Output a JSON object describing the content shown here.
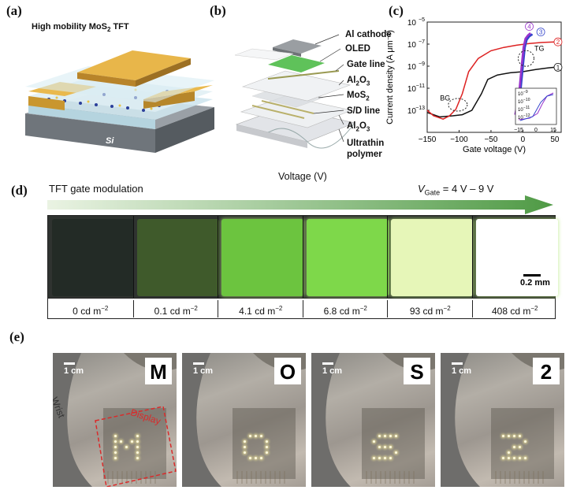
{
  "panels": {
    "a": "(a)",
    "b": "(b)",
    "c": "(c)",
    "d": "(d)",
    "e": "(e)"
  },
  "panel_a": {
    "title": "High mobility MoS",
    "title_sub": "2",
    "title_end": " TFT",
    "si": "Si"
  },
  "panel_b": {
    "layers": [
      {
        "text": "Al cathode"
      },
      {
        "text": "OLED"
      },
      {
        "text": "Gate line"
      },
      {
        "text": "Al",
        "sub": "2",
        "rest": "O",
        "sub2": "3"
      },
      {
        "text": "MoS",
        "sub": "2"
      },
      {
        "text": "S/D line"
      },
      {
        "text": "Al",
        "sub": "2",
        "rest": "O",
        "sub2": "3"
      },
      {
        "text": "Ultrathin"
      },
      {
        "text": "polymer"
      }
    ],
    "below": "Voltage (V)"
  },
  "chart_data": {
    "type": "line",
    "xlabel": "Gate voltage (V)",
    "ylabel": "Current density (A μm⁻²)",
    "xlim": [
      -150,
      60
    ],
    "ylim_log10": [
      -15,
      -5
    ],
    "x_ticks": [
      "−150",
      "−100",
      "−50",
      "0",
      "50"
    ],
    "y_ticks": [
      {
        "base": "10",
        "exp": "−5"
      },
      {
        "base": "10",
        "exp": "−7"
      },
      {
        "base": "10",
        "exp": "−9"
      },
      {
        "base": "10",
        "exp": "−11"
      },
      {
        "base": "10",
        "exp": "−13"
      }
    ],
    "annotations": [
      "BG",
      "TG"
    ],
    "series": [
      {
        "name": "1",
        "color": "#111111",
        "x": [
          -150,
          -130,
          -110,
          -95,
          -80,
          -65,
          -55,
          -40,
          -20,
          0,
          20,
          40,
          50
        ],
        "y": [
          -13.2,
          -13.6,
          -13.5,
          -13.4,
          -13.0,
          -11.5,
          -10.2,
          -9.8,
          -9.6,
          -9.5,
          -9.3,
          -9.15,
          -9.1
        ]
      },
      {
        "name": "2",
        "color": "#dd2222",
        "x": [
          -150,
          -140,
          -125,
          -115,
          -105,
          -95,
          -85,
          -70,
          -50,
          -30,
          -10,
          10,
          30,
          50
        ],
        "y": [
          -13.0,
          -13.5,
          -13.8,
          -13.5,
          -12.9,
          -11.5,
          -9.5,
          -8.3,
          -7.6,
          -7.3,
          -7.1,
          -6.95,
          -6.85,
          -6.8
        ]
      },
      {
        "name": "3",
        "color": "#3344cc",
        "x": [
          -10,
          -5,
          0,
          3,
          6,
          10,
          15
        ],
        "y": [
          -13.5,
          -12.0,
          -9.0,
          -7.3,
          -6.6,
          -6.3,
          -6.1
        ]
      },
      {
        "name": "4",
        "color": "#9933cc",
        "x": [
          -12,
          -6,
          -2,
          1,
          4,
          8,
          12
        ],
        "y": [
          -13.4,
          -11.5,
          -9.0,
          -7.3,
          -6.5,
          -6.2,
          -6.0
        ]
      }
    ],
    "inset": {
      "x_ticks": [
        "−15",
        "0",
        "15"
      ],
      "y_ticks": [
        {
          "base": "10",
          "exp": "−9"
        },
        {
          "base": "10",
          "exp": "−10"
        },
        {
          "base": "10",
          "exp": "−11"
        },
        {
          "base": "10",
          "exp": "−12"
        }
      ]
    }
  },
  "panel_d": {
    "arrow_label": "TFT gate modulation",
    "v_label": "V",
    "v_sub": "Gate",
    "v_range": " = 4 V – 9 V",
    "scale": "0.2 mm",
    "cells": [
      {
        "value": "0",
        "unit": " cd m",
        "exp": "−2",
        "color": "#232b26"
      },
      {
        "value": "0.1",
        "unit": " cd m",
        "exp": "−2",
        "color": "#3f5a2b"
      },
      {
        "value": "4.1",
        "unit": " cd m",
        "exp": "−2",
        "color": "#6cc43f"
      },
      {
        "value": "6.8",
        "unit": " cd m",
        "exp": "−2",
        "color": "#7ed84a"
      },
      {
        "value": "93",
        "unit": " cd m",
        "exp": "−2",
        "color": "#e6f6b8"
      },
      {
        "value": "408",
        "unit": " cd m",
        "exp": "−2",
        "color": "#ffffff"
      }
    ]
  },
  "panel_e": {
    "scale": "1 cm",
    "wrist": "Wrist",
    "display": "Display",
    "letters": [
      "M",
      "O",
      "S",
      "2"
    ]
  }
}
